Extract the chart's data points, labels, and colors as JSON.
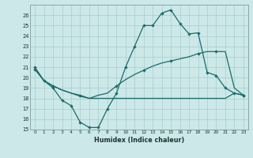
{
  "xlabel": "Humidex (Indice chaleur)",
  "background_color": "#cce8e8",
  "grid_color": "#aacccc",
  "line_color": "#1a6b6b",
  "xlim": [
    -0.5,
    23.5
  ],
  "ylim": [
    15,
    27
  ],
  "yticks": [
    15,
    16,
    17,
    18,
    19,
    20,
    21,
    22,
    23,
    24,
    25,
    26
  ],
  "xticks": [
    0,
    1,
    2,
    3,
    4,
    5,
    6,
    7,
    8,
    9,
    10,
    11,
    12,
    13,
    14,
    15,
    16,
    17,
    18,
    19,
    20,
    21,
    22,
    23
  ],
  "line1_y": [
    21.0,
    19.7,
    19.0,
    17.8,
    17.3,
    15.7,
    15.2,
    15.2,
    17.0,
    18.5,
    21.0,
    23.0,
    25.0,
    25.0,
    26.2,
    26.5,
    25.2,
    24.2,
    24.3,
    20.5,
    20.2,
    19.0,
    18.5,
    18.3
  ],
  "line1_markers": [
    0,
    1,
    2,
    3,
    4,
    5,
    6,
    7,
    8,
    9,
    10,
    11,
    12,
    13,
    14,
    15,
    16,
    17,
    18,
    19,
    20,
    21,
    22,
    23
  ],
  "line2_y": [
    20.8,
    19.7,
    19.2,
    18.8,
    18.5,
    18.3,
    18.0,
    18.3,
    18.5,
    19.2,
    19.8,
    20.3,
    20.7,
    21.1,
    21.4,
    21.6,
    21.8,
    22.0,
    22.3,
    22.5,
    22.5,
    22.5,
    19.0,
    18.3
  ],
  "line2_markers": [
    0,
    2,
    5,
    9,
    12,
    15,
    18,
    20,
    23
  ],
  "line3_y": [
    20.8,
    19.7,
    19.2,
    18.8,
    18.5,
    18.2,
    18.0,
    18.0,
    18.0,
    18.0,
    18.0,
    18.0,
    18.0,
    18.0,
    18.0,
    18.0,
    18.0,
    18.0,
    18.0,
    18.0,
    18.0,
    18.0,
    18.5,
    18.3
  ],
  "line3_markers": [],
  "line4_markers": []
}
